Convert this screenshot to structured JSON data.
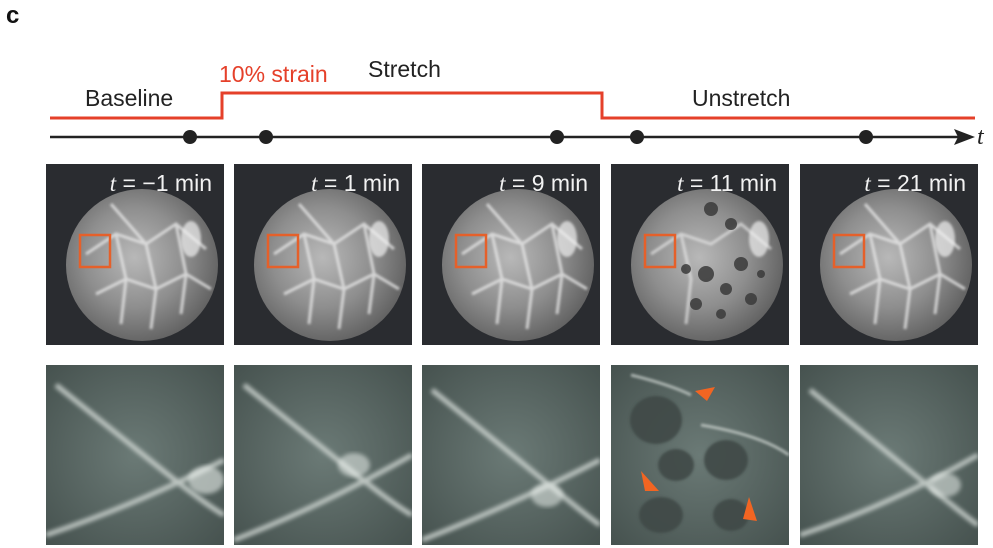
{
  "panel_letter": "c",
  "phases": {
    "baseline": "Baseline",
    "strain": "10% strain",
    "stretch": "Stretch",
    "unstretch": "Unstretch"
  },
  "axis_label": "t",
  "colors": {
    "strain_line": "#e5402a",
    "roi_box": "#e5602a",
    "arrowhead": "#f26522",
    "axis": "#222222"
  },
  "frames": [
    {
      "t_symbol": "t",
      "time_text": " = −1 min"
    },
    {
      "t_symbol": "t",
      "time_text": " = 1 min"
    },
    {
      "t_symbol": "t",
      "time_text": " = 9 min"
    },
    {
      "t_symbol": "t",
      "time_text": " = 11 min"
    },
    {
      "t_symbol": "t",
      "time_text": " = 21 min"
    }
  ]
}
